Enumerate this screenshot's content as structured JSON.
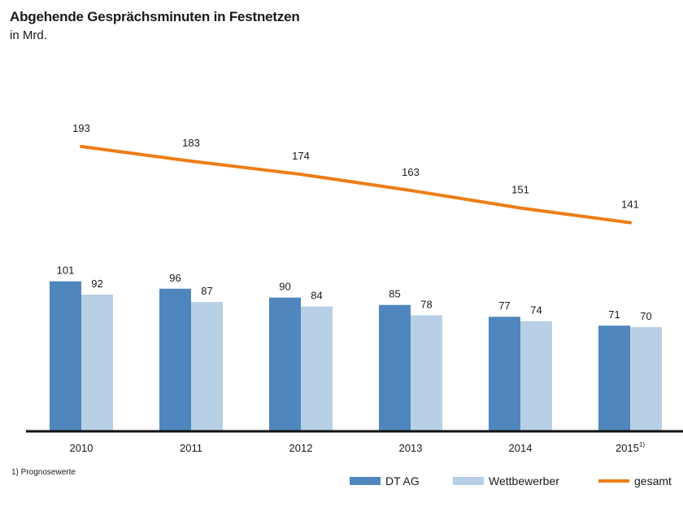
{
  "chart_data": {
    "type": "bar",
    "title": "Abgehende Gesprächsminuten in Festnetzen",
    "subtitle": "in Mrd.",
    "categories": [
      "2010",
      "2011",
      "2012",
      "2013",
      "2014",
      "2015"
    ],
    "category_superscripts": [
      "",
      "",
      "",
      "",
      "",
      "1)"
    ],
    "series": [
      {
        "name": "DT AG",
        "kind": "bar",
        "color": "#4f86bd",
        "values": [
          101,
          96,
          90,
          85,
          77,
          71
        ]
      },
      {
        "name": "Wettbewerber",
        "kind": "bar",
        "color": "#b7d0e6",
        "values": [
          92,
          87,
          84,
          78,
          74,
          70
        ]
      },
      {
        "name": "gesamt",
        "kind": "line",
        "color": "#ed7d16",
        "values": [
          193,
          183,
          174,
          163,
          151,
          141
        ]
      }
    ],
    "data_labels": true,
    "grid": false,
    "legend_position": "bottom-right",
    "footnote": "1) Prognosewerte"
  }
}
